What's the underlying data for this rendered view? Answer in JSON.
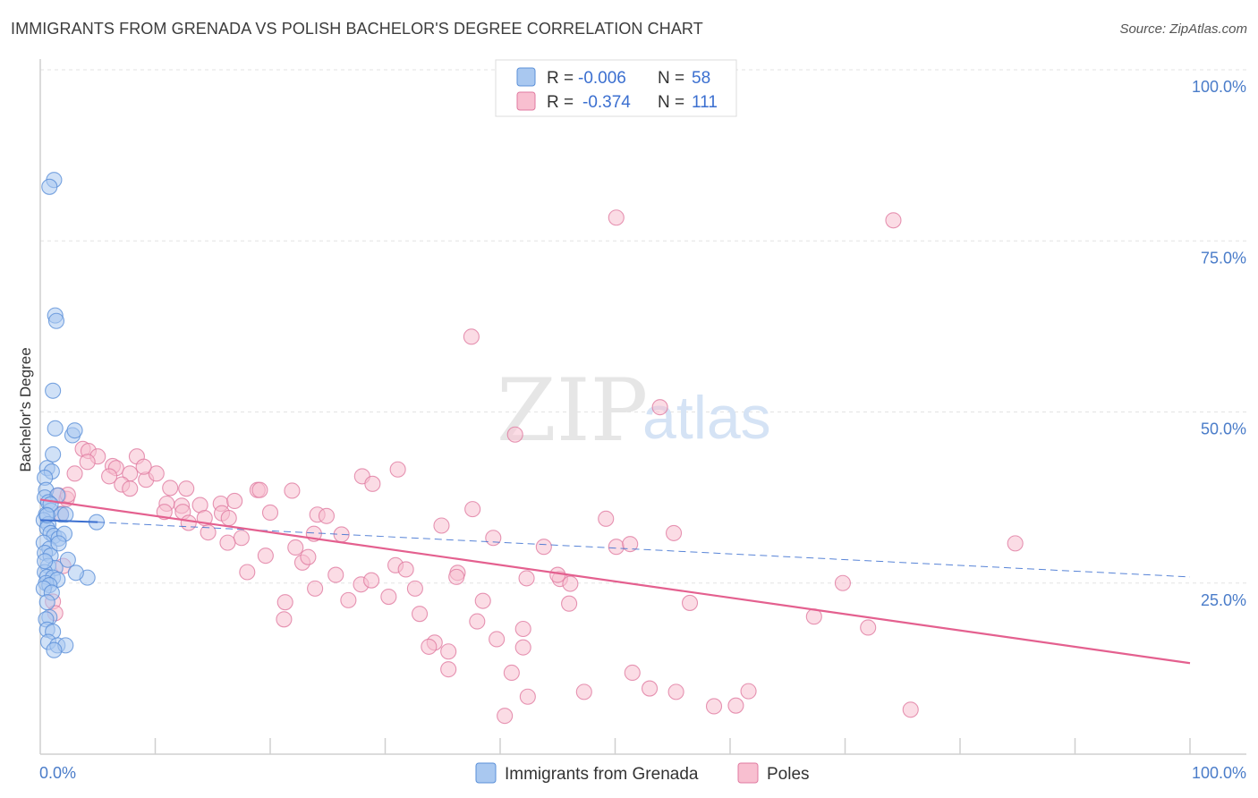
{
  "header": {
    "title": "IMMIGRANTS FROM GRENADA VS POLISH BACHELOR'S DEGREE CORRELATION CHART",
    "source": "Source: ZipAtlas.com"
  },
  "watermark": {
    "zip": "ZIP",
    "atlas": "atlas"
  },
  "legend": {
    "r_label": "R =",
    "n_label": "N =",
    "rows": [
      {
        "r": "-0.006",
        "n": "58",
        "color": "#a9c8f0",
        "stroke": "#5a8fd8"
      },
      {
        "r": "-0.374",
        "n": "111",
        "color": "#f8bfd0",
        "stroke": "#e07aa0"
      }
    ]
  },
  "bottom_legend": [
    {
      "label": "Immigrants from Grenada",
      "color": "#a9c8f0",
      "stroke": "#5a8fd8"
    },
    {
      "label": "Poles",
      "color": "#f8bfd0",
      "stroke": "#e07aa0"
    }
  ],
  "chart_data": {
    "type": "scatter",
    "title": "IMMIGRANTS FROM GRENADA VS POLISH BACHELOR'S DEGREE CORRELATION CHART",
    "xlabel": "",
    "ylabel": "Bachelor's Degree",
    "xlim": [
      0,
      100
    ],
    "ylim": [
      0,
      100
    ],
    "x_tick_labels": [
      "0.0%",
      "100.0%"
    ],
    "y_tick_labels": [
      "25.0%",
      "50.0%",
      "75.0%",
      "100.0%"
    ],
    "y_ticks": [
      25,
      50,
      75,
      100
    ],
    "grid": "horizontal dashed",
    "legend_position": "top-center",
    "series": [
      {
        "name": "Immigrants from Grenada",
        "color": "#a9c8f0",
        "stroke": "#5a8fd8",
        "trend": {
          "x": [
            0,
            5
          ],
          "y": [
            34.2,
            33.9
          ],
          "dashed_to": [
            100,
            25.9
          ],
          "color": "#3b6fd0"
        },
        "points": [
          [
            1.2,
            83.9
          ],
          [
            0.8,
            82.9
          ],
          [
            1.3,
            64.1
          ],
          [
            1.4,
            63.3
          ],
          [
            1.1,
            53.1
          ],
          [
            1.3,
            47.6
          ],
          [
            2.8,
            46.6
          ],
          [
            3.0,
            47.3
          ],
          [
            0.6,
            41.8
          ],
          [
            1.0,
            41.3
          ],
          [
            1.1,
            43.8
          ],
          [
            0.4,
            40.4
          ],
          [
            0.5,
            38.6
          ],
          [
            0.4,
            37.5
          ],
          [
            1.5,
            37.8
          ],
          [
            0.7,
            36.8
          ],
          [
            0.9,
            35.6
          ],
          [
            0.5,
            35.0
          ],
          [
            1.8,
            35.0
          ],
          [
            2.2,
            35.0
          ],
          [
            0.3,
            34.2
          ],
          [
            0.7,
            33.6
          ],
          [
            4.9,
            33.9
          ],
          [
            0.6,
            33.0
          ],
          [
            0.9,
            32.3
          ],
          [
            1.2,
            31.9
          ],
          [
            1.6,
            31.5
          ],
          [
            2.1,
            32.2
          ],
          [
            0.3,
            30.9
          ],
          [
            0.8,
            30.0
          ],
          [
            0.4,
            29.4
          ],
          [
            0.9,
            29.0
          ],
          [
            2.4,
            28.4
          ],
          [
            0.7,
            27.5
          ],
          [
            1.3,
            27.2
          ],
          [
            0.4,
            26.6
          ],
          [
            0.6,
            25.9
          ],
          [
            1.1,
            25.8
          ],
          [
            1.5,
            25.5
          ],
          [
            4.1,
            25.8
          ],
          [
            3.1,
            26.5
          ],
          [
            0.5,
            25.0
          ],
          [
            0.8,
            24.7
          ],
          [
            0.3,
            24.2
          ],
          [
            1.0,
            23.6
          ],
          [
            0.6,
            22.2
          ],
          [
            0.8,
            20.0
          ],
          [
            0.5,
            19.7
          ],
          [
            0.6,
            18.2
          ],
          [
            1.1,
            17.9
          ],
          [
            0.7,
            16.4
          ],
          [
            1.5,
            15.9
          ],
          [
            2.2,
            15.9
          ],
          [
            1.2,
            15.2
          ],
          [
            0.4,
            28.2
          ],
          [
            0.9,
            36.5
          ],
          [
            0.6,
            34.9
          ],
          [
            1.6,
            30.8
          ]
        ]
      },
      {
        "name": "Poles",
        "color": "#f8bfd0",
        "stroke": "#e07aa0",
        "trend": {
          "x": [
            0,
            100
          ],
          "y": [
            37.2,
            13.3
          ],
          "color": "#e4608f"
        },
        "points": [
          [
            50.1,
            78.4
          ],
          [
            74.2,
            78.0
          ],
          [
            37.5,
            61.0
          ],
          [
            53.9,
            50.7
          ],
          [
            41.3,
            46.7
          ],
          [
            3.7,
            44.6
          ],
          [
            4.2,
            44.3
          ],
          [
            5.0,
            43.5
          ],
          [
            8.4,
            43.5
          ],
          [
            4.1,
            42.7
          ],
          [
            6.3,
            42.1
          ],
          [
            6.6,
            41.8
          ],
          [
            7.8,
            41.0
          ],
          [
            9.2,
            40.1
          ],
          [
            10.1,
            41.0
          ],
          [
            31.1,
            41.6
          ],
          [
            28.0,
            40.6
          ],
          [
            28.9,
            39.5
          ],
          [
            7.1,
            39.4
          ],
          [
            7.8,
            38.8
          ],
          [
            11.3,
            38.9
          ],
          [
            12.7,
            38.8
          ],
          [
            18.9,
            38.6
          ],
          [
            19.1,
            38.6
          ],
          [
            21.9,
            38.5
          ],
          [
            1.6,
            37.8
          ],
          [
            2.3,
            37.3
          ],
          [
            11.0,
            36.6
          ],
          [
            12.3,
            36.3
          ],
          [
            13.9,
            36.4
          ],
          [
            15.7,
            36.6
          ],
          [
            37.6,
            35.8
          ],
          [
            10.8,
            35.4
          ],
          [
            12.4,
            35.4
          ],
          [
            15.8,
            35.2
          ],
          [
            20.0,
            35.3
          ],
          [
            24.1,
            35.0
          ],
          [
            24.9,
            34.8
          ],
          [
            14.3,
            34.5
          ],
          [
            16.4,
            34.5
          ],
          [
            34.9,
            33.4
          ],
          [
            49.2,
            34.4
          ],
          [
            12.9,
            33.8
          ],
          [
            14.6,
            32.4
          ],
          [
            17.5,
            31.6
          ],
          [
            23.8,
            32.2
          ],
          [
            26.2,
            32.1
          ],
          [
            39.4,
            31.6
          ],
          [
            16.3,
            30.9
          ],
          [
            22.2,
            30.2
          ],
          [
            43.8,
            30.3
          ],
          [
            50.1,
            30.3
          ],
          [
            51.3,
            30.7
          ],
          [
            55.1,
            32.3
          ],
          [
            84.8,
            30.8
          ],
          [
            19.6,
            29.0
          ],
          [
            22.8,
            28.0
          ],
          [
            23.3,
            28.8
          ],
          [
            30.9,
            27.6
          ],
          [
            31.8,
            27.0
          ],
          [
            36.3,
            26.5
          ],
          [
            36.2,
            25.9
          ],
          [
            42.3,
            25.7
          ],
          [
            45.2,
            25.6
          ],
          [
            46.1,
            24.9
          ],
          [
            25.7,
            26.2
          ],
          [
            18.0,
            26.6
          ],
          [
            27.9,
            24.8
          ],
          [
            28.8,
            25.4
          ],
          [
            32.6,
            24.2
          ],
          [
            23.9,
            24.2
          ],
          [
            21.3,
            22.2
          ],
          [
            26.8,
            22.5
          ],
          [
            30.3,
            23.0
          ],
          [
            38.5,
            22.4
          ],
          [
            46.0,
            22.0
          ],
          [
            56.5,
            22.1
          ],
          [
            69.8,
            25.0
          ],
          [
            33.0,
            20.5
          ],
          [
            21.2,
            19.7
          ],
          [
            38.0,
            19.4
          ],
          [
            42.0,
            18.3
          ],
          [
            67.3,
            20.1
          ],
          [
            72.0,
            18.5
          ],
          [
            34.3,
            16.3
          ],
          [
            33.8,
            15.7
          ],
          [
            35.5,
            15.0
          ],
          [
            39.7,
            16.8
          ],
          [
            42.0,
            15.6
          ],
          [
            35.5,
            12.4
          ],
          [
            41.0,
            11.9
          ],
          [
            51.5,
            11.9
          ],
          [
            53.0,
            9.6
          ],
          [
            47.3,
            9.1
          ],
          [
            55.3,
            9.1
          ],
          [
            42.4,
            8.4
          ],
          [
            61.6,
            9.2
          ],
          [
            58.6,
            7.0
          ],
          [
            60.5,
            7.1
          ],
          [
            75.7,
            6.5
          ],
          [
            40.4,
            5.6
          ],
          [
            2.0,
            27.5
          ],
          [
            1.1,
            22.3
          ],
          [
            3.0,
            41.0
          ],
          [
            1.8,
            35.1
          ],
          [
            9.0,
            42.0
          ],
          [
            16.9,
            37.0
          ],
          [
            6.0,
            40.6
          ],
          [
            2.4,
            37.9
          ],
          [
            1.3,
            20.6
          ],
          [
            45.0,
            26.2
          ]
        ]
      }
    ]
  }
}
